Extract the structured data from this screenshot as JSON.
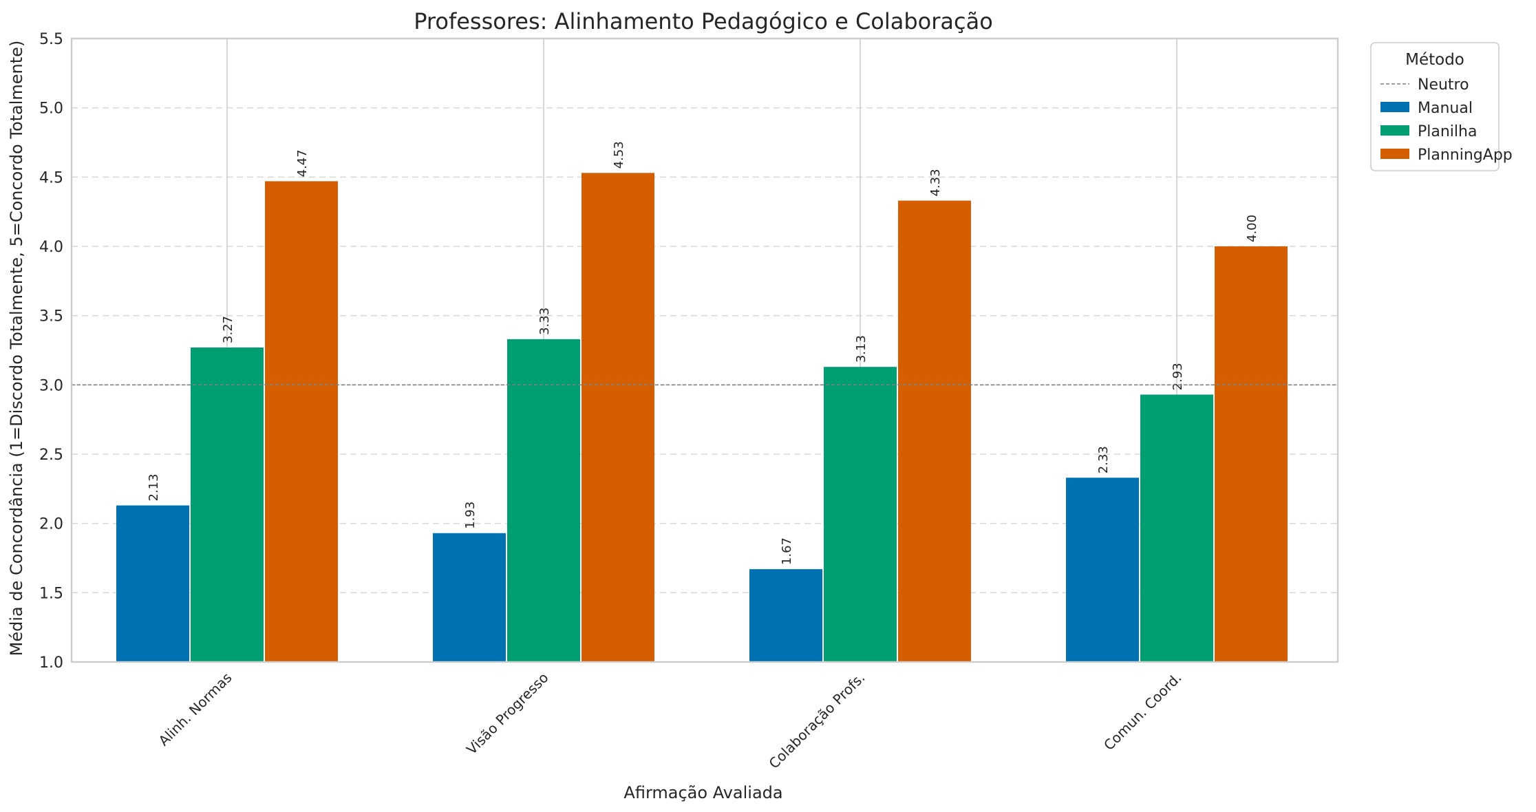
{
  "chart_data": {
    "type": "bar",
    "title": "Professores: Alinhamento Pedagógico e Colaboração",
    "xlabel": "Afirmação Avaliada",
    "ylabel": "Média de Concordância (1=Discordo Totalmente, 5=Concordo Totalmente)",
    "ylim": [
      1.0,
      5.5
    ],
    "yticks": [
      "1.0",
      "1.5",
      "2.0",
      "2.5",
      "3.0",
      "3.5",
      "4.0",
      "4.5",
      "5.0",
      "5.5"
    ],
    "categories": [
      "Alinh. Normas",
      "Visão Progresso",
      "Colaboração Profs.",
      "Comun. Coord."
    ],
    "series": [
      {
        "name": "Manual",
        "color": "#0072b2",
        "values": [
          2.13,
          1.93,
          1.67,
          2.33
        ],
        "labels": [
          "2.13",
          "1.93",
          "1.67",
          "2.33"
        ]
      },
      {
        "name": "Planilha",
        "color": "#009e73",
        "values": [
          3.27,
          3.33,
          3.13,
          2.93
        ],
        "labels": [
          "3.27",
          "3.33",
          "3.13",
          "2.93"
        ]
      },
      {
        "name": "PlanningApp",
        "color": "#d55e00",
        "values": [
          4.47,
          4.53,
          4.33,
          4.0
        ],
        "labels": [
          "4.47",
          "4.53",
          "4.33",
          "4.00"
        ]
      }
    ],
    "reference_line": {
      "name": "Neutro",
      "value": 3.0,
      "color": "#808080",
      "style": "dashed"
    },
    "legend": {
      "title": "Método",
      "placement": "outside-top-right"
    },
    "grid": {
      "y": true,
      "style": "dashed",
      "x": "solid-at-categories"
    }
  }
}
